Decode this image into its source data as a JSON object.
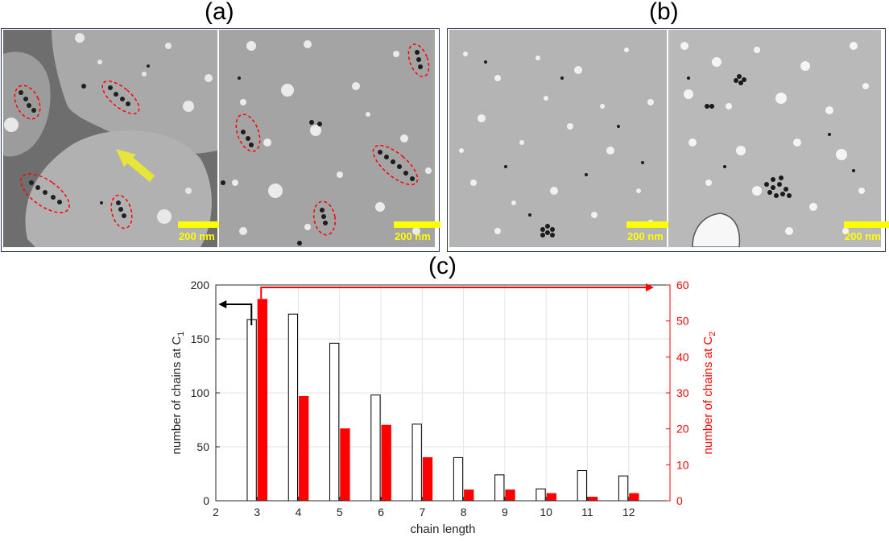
{
  "panels": {
    "a": {
      "label": "(a)",
      "scale_left": "200 nm",
      "scale_right": "200 nm"
    },
    "b": {
      "label": "(b)",
      "scale_left": "200 nm",
      "scale_right": "200 nm"
    },
    "c": {
      "label": "(c)"
    }
  },
  "colors": {
    "c1": "#000000",
    "c2": "#ff0000",
    "scale": "#ffff00",
    "ellipse": "#ff0000",
    "arrow_yellow": "#e6e63a"
  },
  "chart_data": {
    "type": "bar",
    "xlabel": "chain length",
    "ylabel_left": "number of chains at C",
    "ylabel_left_sub": "1",
    "ylabel_right": "number of chains at C",
    "ylabel_right_sub": "2",
    "x": [
      3,
      4,
      5,
      6,
      7,
      8,
      9,
      10,
      11,
      12
    ],
    "xlim": [
      2,
      13
    ],
    "xticks": [
      2,
      3,
      4,
      5,
      6,
      7,
      8,
      9,
      10,
      11,
      12
    ],
    "ylim_left": [
      0,
      200
    ],
    "yticks_left": [
      0,
      50,
      100,
      150,
      200
    ],
    "ylim_right": [
      0,
      60
    ],
    "yticks_right": [
      0,
      10,
      20,
      30,
      40,
      50,
      60
    ],
    "grid": true,
    "series": [
      {
        "axis": "left",
        "style": "hollow",
        "values": [
          168,
          173,
          146,
          98,
          71,
          40,
          24,
          11,
          28,
          23
        ]
      },
      {
        "axis": "right",
        "style": "filled",
        "values": [
          56,
          29,
          20,
          21,
          12,
          3,
          3,
          2,
          1,
          2
        ]
      }
    ]
  }
}
